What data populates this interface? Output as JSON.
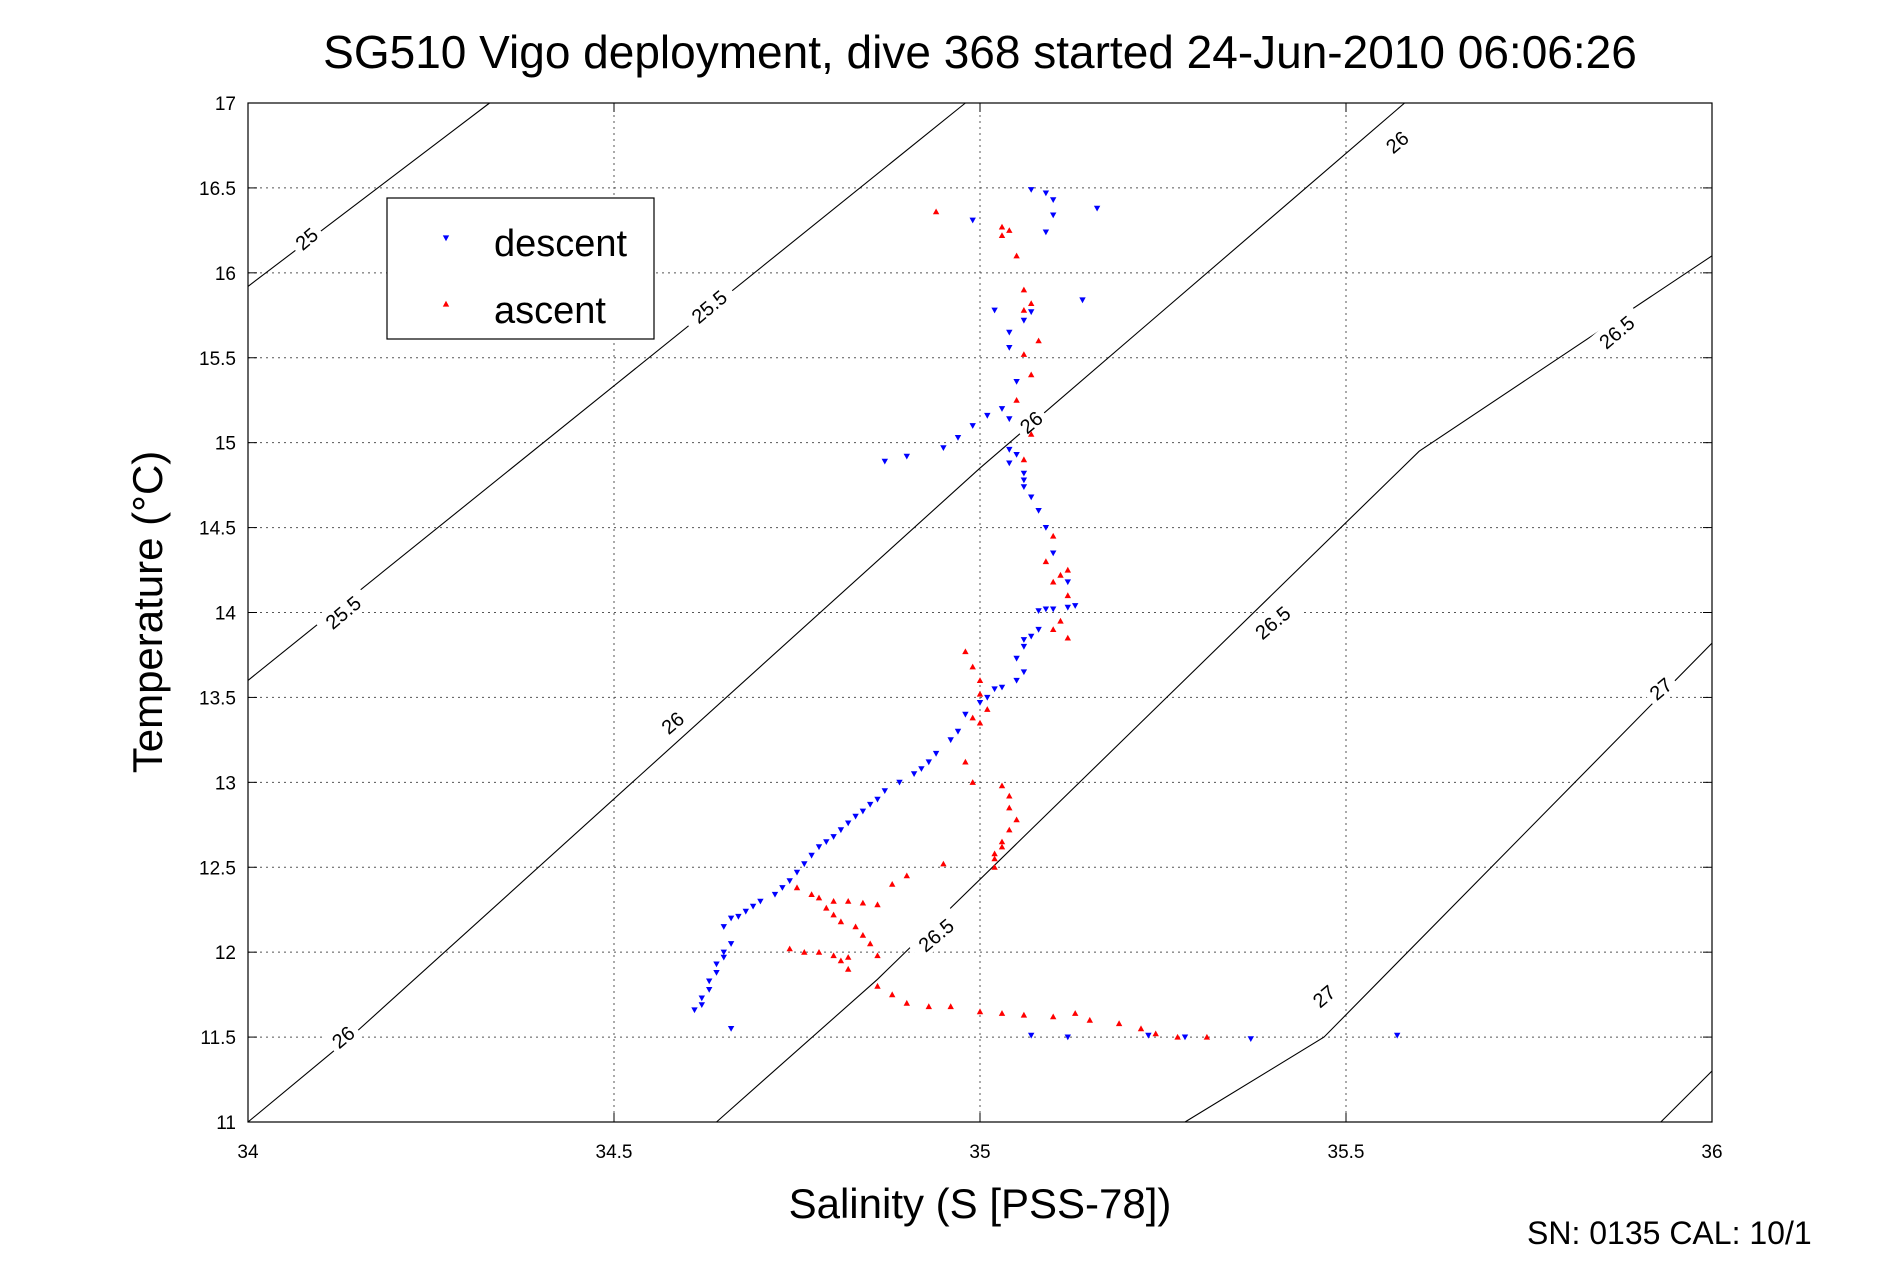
{
  "chart_data": {
    "type": "scatter",
    "title": "SG510 Vigo deployment, dive 368 started 24-Jun-2010 06:06:26",
    "xlabel": "Salinity (S [PSS-78])",
    "ylabel": "Temperature (°C)",
    "xlim": [
      34,
      36
    ],
    "ylim": [
      11,
      17
    ],
    "xticks": [
      "34",
      "34.5",
      "35",
      "35.5",
      "36"
    ],
    "yticks": [
      "11",
      "11.5",
      "12",
      "12.5",
      "13",
      "13.5",
      "14",
      "14.5",
      "15",
      "15.5",
      "16",
      "16.5",
      "17"
    ],
    "grid": true,
    "legend_position": "top-left",
    "footer": "SN: 0135  CAL: 10/1",
    "colors": {
      "descent": "#0000ff",
      "ascent": "#ff0000",
      "contour": "#000000"
    },
    "contours": [
      {
        "sigma": "25",
        "points": [
          [
            34.0,
            15.92
          ],
          [
            34.33,
            17.0
          ]
        ]
      },
      {
        "sigma": "25.5",
        "points": [
          [
            34.0,
            13.6
          ],
          [
            34.98,
            17.0
          ]
        ]
      },
      {
        "sigma": "26",
        "points": [
          [
            34.0,
            11.0
          ],
          [
            34.14,
            11.5
          ],
          [
            35.0,
            14.85
          ],
          [
            35.58,
            17.0
          ]
        ]
      },
      {
        "sigma": "26.5",
        "points": [
          [
            34.64,
            11.0
          ],
          [
            34.86,
            11.84
          ],
          [
            35.6,
            14.95
          ],
          [
            36.0,
            16.1
          ]
        ]
      },
      {
        "sigma": "27",
        "points": [
          [
            35.28,
            11.0
          ],
          [
            35.47,
            11.5
          ],
          [
            36.0,
            13.82
          ]
        ]
      },
      {
        "sigma": "27.5",
        "points": [
          [
            35.93,
            11.0
          ],
          [
            36.0,
            11.3
          ]
        ]
      }
    ],
    "contour_labels": [
      {
        "text": "25",
        "x": 34.08,
        "y": 16.2,
        "angle": -40
      },
      {
        "text": "25.5",
        "x": 34.63,
        "y": 15.8,
        "angle": -40
      },
      {
        "text": "26",
        "x": 35.57,
        "y": 16.77,
        "angle": -40
      },
      {
        "text": "26.5",
        "x": 35.87,
        "y": 15.65,
        "angle": -40
      },
      {
        "text": "25.5",
        "x": 34.13,
        "y": 14.0,
        "angle": -40
      },
      {
        "text": "26",
        "x": 35.07,
        "y": 15.12,
        "angle": -40
      },
      {
        "text": "26.5",
        "x": 35.4,
        "y": 13.94,
        "angle": -40
      },
      {
        "text": "26",
        "x": 34.58,
        "y": 13.35,
        "angle": -40
      },
      {
        "text": "27",
        "x": 35.93,
        "y": 13.55,
        "angle": -40
      },
      {
        "text": "26.5",
        "x": 34.94,
        "y": 12.1,
        "angle": -40
      },
      {
        "text": "27",
        "x": 35.47,
        "y": 11.74,
        "angle": -40
      },
      {
        "text": "26",
        "x": 34.13,
        "y": 11.5,
        "angle": -40
      }
    ],
    "series": [
      {
        "name": "descent",
        "points": [
          [
            35.07,
            16.49
          ],
          [
            35.09,
            16.47
          ],
          [
            35.1,
            16.43
          ],
          [
            35.16,
            16.38
          ],
          [
            35.1,
            16.34
          ],
          [
            34.99,
            16.31
          ],
          [
            35.09,
            16.24
          ],
          [
            35.14,
            15.84
          ],
          [
            35.02,
            15.78
          ],
          [
            35.07,
            15.77
          ],
          [
            35.06,
            15.72
          ],
          [
            35.04,
            15.65
          ],
          [
            35.04,
            15.56
          ],
          [
            35.05,
            15.36
          ],
          [
            35.03,
            15.2
          ],
          [
            35.01,
            15.16
          ],
          [
            34.99,
            15.1
          ],
          [
            34.97,
            15.03
          ],
          [
            34.95,
            14.97
          ],
          [
            34.9,
            14.92
          ],
          [
            34.87,
            14.89
          ],
          [
            35.04,
            15.14
          ],
          [
            35.04,
            14.96
          ],
          [
            35.05,
            14.93
          ],
          [
            35.04,
            14.88
          ],
          [
            35.06,
            14.82
          ],
          [
            35.06,
            14.78
          ],
          [
            35.06,
            14.74
          ],
          [
            35.07,
            14.68
          ],
          [
            35.08,
            14.6
          ],
          [
            35.09,
            14.5
          ],
          [
            35.1,
            14.35
          ],
          [
            35.12,
            14.18
          ],
          [
            35.13,
            14.04
          ],
          [
            35.12,
            14.03
          ],
          [
            35.1,
            14.02
          ],
          [
            35.09,
            14.02
          ],
          [
            35.08,
            14.01
          ],
          [
            35.08,
            13.9
          ],
          [
            35.07,
            13.86
          ],
          [
            35.06,
            13.84
          ],
          [
            35.06,
            13.8
          ],
          [
            35.05,
            13.73
          ],
          [
            35.06,
            13.65
          ],
          [
            35.05,
            13.6
          ],
          [
            35.03,
            13.56
          ],
          [
            35.02,
            13.55
          ],
          [
            35.01,
            13.5
          ],
          [
            35.0,
            13.47
          ],
          [
            34.98,
            13.4
          ],
          [
            34.97,
            13.3
          ],
          [
            34.96,
            13.25
          ],
          [
            34.94,
            13.17
          ],
          [
            34.93,
            13.12
          ],
          [
            34.92,
            13.08
          ],
          [
            34.91,
            13.05
          ],
          [
            34.89,
            13.0
          ],
          [
            34.87,
            12.95
          ],
          [
            34.86,
            12.9
          ],
          [
            34.85,
            12.87
          ],
          [
            34.84,
            12.83
          ],
          [
            34.83,
            12.8
          ],
          [
            34.82,
            12.76
          ],
          [
            34.81,
            12.72
          ],
          [
            34.8,
            12.68
          ],
          [
            34.79,
            12.65
          ],
          [
            34.78,
            12.62
          ],
          [
            34.77,
            12.57
          ],
          [
            34.76,
            12.52
          ],
          [
            34.75,
            12.47
          ],
          [
            34.74,
            12.42
          ],
          [
            34.73,
            12.38
          ],
          [
            34.72,
            12.34
          ],
          [
            34.7,
            12.3
          ],
          [
            34.69,
            12.27
          ],
          [
            34.68,
            12.24
          ],
          [
            34.67,
            12.21
          ],
          [
            34.66,
            12.2
          ],
          [
            34.65,
            12.15
          ],
          [
            34.66,
            12.05
          ],
          [
            34.65,
            12.0
          ],
          [
            34.65,
            11.97
          ],
          [
            34.64,
            11.93
          ],
          [
            34.64,
            11.88
          ],
          [
            34.63,
            11.83
          ],
          [
            34.63,
            11.78
          ],
          [
            34.62,
            11.73
          ],
          [
            34.62,
            11.69
          ],
          [
            34.61,
            11.66
          ],
          [
            34.66,
            11.55
          ],
          [
            35.07,
            11.51
          ],
          [
            35.12,
            11.5
          ],
          [
            35.23,
            11.51
          ],
          [
            35.28,
            11.5
          ],
          [
            35.37,
            11.49
          ],
          [
            35.57,
            11.51
          ]
        ]
      },
      {
        "name": "ascent",
        "points": [
          [
            34.94,
            16.36
          ],
          [
            35.03,
            16.27
          ],
          [
            35.04,
            16.25
          ],
          [
            35.03,
            16.22
          ],
          [
            35.05,
            16.1
          ],
          [
            35.06,
            15.9
          ],
          [
            35.07,
            15.82
          ],
          [
            35.06,
            15.78
          ],
          [
            35.08,
            15.6
          ],
          [
            35.06,
            15.52
          ],
          [
            35.07,
            15.4
          ],
          [
            35.05,
            15.25
          ],
          [
            35.07,
            15.05
          ],
          [
            35.06,
            14.9
          ],
          [
            35.1,
            14.45
          ],
          [
            35.09,
            14.3
          ],
          [
            35.12,
            14.25
          ],
          [
            35.11,
            14.22
          ],
          [
            35.1,
            14.18
          ],
          [
            35.12,
            14.1
          ],
          [
            35.11,
            13.95
          ],
          [
            35.1,
            13.9
          ],
          [
            35.12,
            13.85
          ],
          [
            34.98,
            13.77
          ],
          [
            34.99,
            13.68
          ],
          [
            35.0,
            13.6
          ],
          [
            35.0,
            13.52
          ],
          [
            35.01,
            13.43
          ],
          [
            34.99,
            13.38
          ],
          [
            35.0,
            13.35
          ],
          [
            34.98,
            13.12
          ],
          [
            34.99,
            13.0
          ],
          [
            35.03,
            12.98
          ],
          [
            35.04,
            12.92
          ],
          [
            35.04,
            12.85
          ],
          [
            35.05,
            12.78
          ],
          [
            35.04,
            12.72
          ],
          [
            35.03,
            12.65
          ],
          [
            35.03,
            12.62
          ],
          [
            35.02,
            12.58
          ],
          [
            35.02,
            12.55
          ],
          [
            35.02,
            12.5
          ],
          [
            34.95,
            12.52
          ],
          [
            34.9,
            12.45
          ],
          [
            34.88,
            12.4
          ],
          [
            34.75,
            12.38
          ],
          [
            34.77,
            12.34
          ],
          [
            34.78,
            12.32
          ],
          [
            34.8,
            12.3
          ],
          [
            34.82,
            12.3
          ],
          [
            34.84,
            12.29
          ],
          [
            34.86,
            12.28
          ],
          [
            34.79,
            12.26
          ],
          [
            34.8,
            12.22
          ],
          [
            34.81,
            12.18
          ],
          [
            34.83,
            12.15
          ],
          [
            34.84,
            12.1
          ],
          [
            34.85,
            12.05
          ],
          [
            34.86,
            11.98
          ],
          [
            34.82,
            11.97
          ],
          [
            34.8,
            11.98
          ],
          [
            34.78,
            12.0
          ],
          [
            34.76,
            12.0
          ],
          [
            34.74,
            12.02
          ],
          [
            34.81,
            11.95
          ],
          [
            34.82,
            11.9
          ],
          [
            34.86,
            11.8
          ],
          [
            34.88,
            11.75
          ],
          [
            34.9,
            11.7
          ],
          [
            34.93,
            11.68
          ],
          [
            34.96,
            11.68
          ],
          [
            35.0,
            11.65
          ],
          [
            35.03,
            11.64
          ],
          [
            35.06,
            11.63
          ],
          [
            35.1,
            11.62
          ],
          [
            35.15,
            11.6
          ],
          [
            35.19,
            11.58
          ],
          [
            35.22,
            11.55
          ],
          [
            35.24,
            11.52
          ],
          [
            35.27,
            11.5
          ],
          [
            35.31,
            11.5
          ],
          [
            35.13,
            11.64
          ]
        ]
      }
    ]
  }
}
